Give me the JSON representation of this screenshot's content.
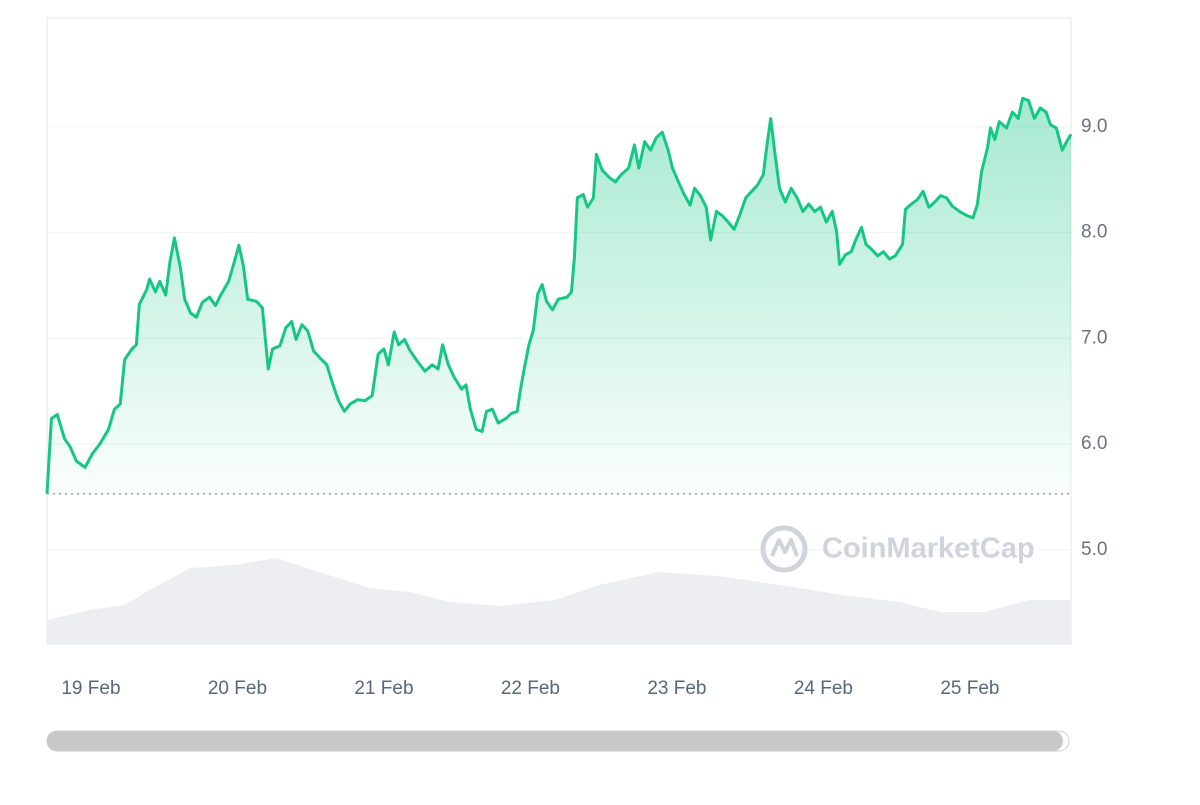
{
  "chart_data": {
    "type": "line",
    "color": "#16c784",
    "grid": true,
    "watermark": "CoinMarketCap",
    "xlim": [
      18.7,
      25.69
    ],
    "ylim": [
      4.1,
      10.03
    ],
    "xticks": [
      {
        "value": 19,
        "label": "19 Feb"
      },
      {
        "value": 20,
        "label": "20 Feb"
      },
      {
        "value": 21,
        "label": "21 Feb"
      },
      {
        "value": 22,
        "label": "22 Feb"
      },
      {
        "value": 23,
        "label": "23 Feb"
      },
      {
        "value": 24,
        "label": "24 Feb"
      },
      {
        "value": 25,
        "label": "25 Feb"
      }
    ],
    "yticks": [
      {
        "value": 5,
        "label": "5.0"
      },
      {
        "value": 6,
        "label": "6.0"
      },
      {
        "value": 7,
        "label": "7.0"
      },
      {
        "value": 8,
        "label": "8.0"
      },
      {
        "value": 9,
        "label": "9.0"
      }
    ],
    "x": [
      18.7,
      18.73,
      18.77,
      18.82,
      18.86,
      18.9,
      18.96,
      19.01,
      19.06,
      19.12,
      19.16,
      19.2,
      19.23,
      19.28,
      19.31,
      19.33,
      19.38,
      19.4,
      19.44,
      19.47,
      19.51,
      19.54,
      19.57,
      19.61,
      19.64,
      19.68,
      19.72,
      19.76,
      19.81,
      19.85,
      19.89,
      19.94,
      19.98,
      20.01,
      20.04,
      20.07,
      20.13,
      20.17,
      20.21,
      20.24,
      20.29,
      20.33,
      20.37,
      20.4,
      20.44,
      20.48,
      20.52,
      20.56,
      20.61,
      20.65,
      20.69,
      20.73,
      20.77,
      20.82,
      20.87,
      20.92,
      20.96,
      21.0,
      21.03,
      21.07,
      21.1,
      21.14,
      21.18,
      21.23,
      21.28,
      21.33,
      21.37,
      21.4,
      21.44,
      21.48,
      21.53,
      21.56,
      21.59,
      21.63,
      21.67,
      21.7,
      21.74,
      21.78,
      21.83,
      21.87,
      21.91,
      21.93,
      21.96,
      21.99,
      22.02,
      22.05,
      22.08,
      22.11,
      22.15,
      22.19,
      22.25,
      22.28,
      22.3,
      22.32,
      22.36,
      22.39,
      22.43,
      22.45,
      22.49,
      22.54,
      22.58,
      22.62,
      22.67,
      22.71,
      22.74,
      22.78,
      22.82,
      22.86,
      22.9,
      22.94,
      22.97,
      23.01,
      23.05,
      23.09,
      23.12,
      23.16,
      23.2,
      23.23,
      23.27,
      23.31,
      23.35,
      23.39,
      23.43,
      23.47,
      23.51,
      23.55,
      23.59,
      23.61,
      23.64,
      23.67,
      23.7,
      23.74,
      23.78,
      23.82,
      23.86,
      23.9,
      23.94,
      23.98,
      24.02,
      24.06,
      24.09,
      24.11,
      24.15,
      24.19,
      24.22,
      24.26,
      24.29,
      24.33,
      24.37,
      24.41,
      24.45,
      24.49,
      24.54,
      24.56,
      24.6,
      24.64,
      24.68,
      24.72,
      24.76,
      24.8,
      24.84,
      24.88,
      24.93,
      24.98,
      25.02,
      25.05,
      25.08,
      25.12,
      25.14,
      25.17,
      25.2,
      25.25,
      25.29,
      25.33,
      25.36,
      25.4,
      25.44,
      25.48,
      25.52,
      25.55,
      25.59,
      25.63,
      25.66,
      25.69
    ],
    "values": [
      5.53,
      6.24,
      6.28,
      6.05,
      5.97,
      5.84,
      5.78,
      5.91,
      6.0,
      6.14,
      6.33,
      6.38,
      6.8,
      6.9,
      6.94,
      7.32,
      7.46,
      7.56,
      7.44,
      7.54,
      7.41,
      7.73,
      7.95,
      7.67,
      7.37,
      7.24,
      7.2,
      7.34,
      7.39,
      7.31,
      7.42,
      7.54,
      7.73,
      7.88,
      7.69,
      7.37,
      7.35,
      7.29,
      6.71,
      6.9,
      6.93,
      7.1,
      7.16,
      6.99,
      7.13,
      7.07,
      6.88,
      6.82,
      6.75,
      6.57,
      6.41,
      6.31,
      6.38,
      6.42,
      6.41,
      6.46,
      6.85,
      6.9,
      6.75,
      7.06,
      6.94,
      6.99,
      6.88,
      6.78,
      6.69,
      6.75,
      6.71,
      6.94,
      6.75,
      6.63,
      6.52,
      6.56,
      6.33,
      6.14,
      6.12,
      6.31,
      6.33,
      6.2,
      6.24,
      6.29,
      6.31,
      6.5,
      6.73,
      6.94,
      7.08,
      7.42,
      7.51,
      7.35,
      7.27,
      7.37,
      7.39,
      7.44,
      7.76,
      8.33,
      8.36,
      8.24,
      8.33,
      8.74,
      8.59,
      8.52,
      8.48,
      8.55,
      8.61,
      8.83,
      8.61,
      8.86,
      8.78,
      8.9,
      8.95,
      8.78,
      8.61,
      8.48,
      8.36,
      8.26,
      8.42,
      8.35,
      8.24,
      7.93,
      8.2,
      8.16,
      8.1,
      8.03,
      8.17,
      8.33,
      8.39,
      8.45,
      8.55,
      8.78,
      9.08,
      8.74,
      8.42,
      8.29,
      8.42,
      8.33,
      8.2,
      8.27,
      8.2,
      8.24,
      8.1,
      8.2,
      8.01,
      7.7,
      7.79,
      7.82,
      7.93,
      8.05,
      7.89,
      7.84,
      7.78,
      7.82,
      7.75,
      7.78,
      7.89,
      8.22,
      8.27,
      8.31,
      8.39,
      8.24,
      8.29,
      8.35,
      8.33,
      8.25,
      8.2,
      8.16,
      8.14,
      8.26,
      8.58,
      8.8,
      8.99,
      8.88,
      9.05,
      8.99,
      9.14,
      9.08,
      9.27,
      9.25,
      9.08,
      9.18,
      9.14,
      9.02,
      8.99,
      8.78,
      8.86,
      8.93
    ],
    "volume": {
      "color": "#eceef2",
      "ylim": [
        0,
        100
      ],
      "x": [
        18.7,
        18.99,
        19.23,
        19.4,
        19.68,
        19.98,
        20.26,
        20.56,
        20.9,
        21.18,
        21.45,
        21.79,
        22.17,
        22.47,
        22.88,
        23.29,
        23.7,
        24.18,
        24.52,
        24.8,
        25.1,
        25.41,
        25.69
      ],
      "values": [
        25,
        35,
        40,
        55,
        77,
        80,
        87,
        73,
        57,
        53,
        43,
        39,
        45,
        60,
        73,
        69,
        60,
        49,
        43,
        33,
        33,
        45,
        45
      ]
    }
  }
}
